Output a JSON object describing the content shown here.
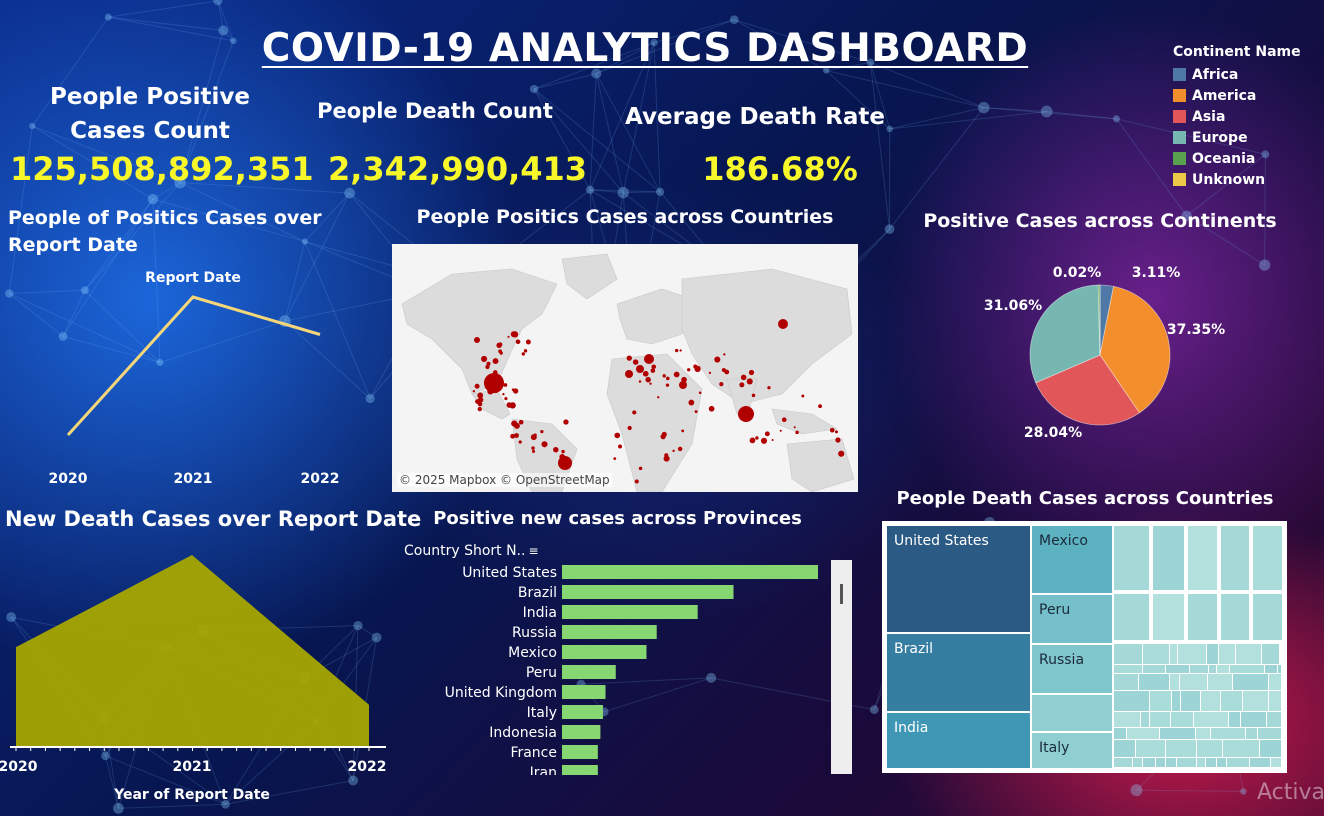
{
  "title": "COVID-19 ANALYTICS DASHBOARD",
  "kpis": {
    "positive_label_line1": "People Positive",
    "positive_label_line2": "Cases Count",
    "positive_value": "125,508,892,351",
    "death_label": "People Death Count",
    "death_value": "2,342,990,413",
    "rate_label": "Average Death Rate",
    "rate_value": "186.68%"
  },
  "legend": {
    "title": "Continent Name",
    "items": [
      {
        "name": "Africa",
        "color": "#4e79a7"
      },
      {
        "name": "America",
        "color": "#f28e2b"
      },
      {
        "name": "Asia",
        "color": "#e15759"
      },
      {
        "name": "Europe",
        "color": "#76b7b2"
      },
      {
        "name": "Oceania",
        "color": "#59a14f"
      },
      {
        "name": "Unknown",
        "color": "#edc948"
      }
    ]
  },
  "map": {
    "title": "People Positics Cases across Countries",
    "attribution": "© 2025 Mapbox © OpenStreetMap"
  },
  "activate_text": "Activa",
  "chart_data": [
    {
      "id": "positive-over-date",
      "type": "line",
      "title": "People of Positics Cases over Report Date",
      "header_label": "Report Date",
      "categories": [
        "2020",
        "2021",
        "2022"
      ],
      "values": [
        8,
        100,
        75
      ],
      "ylim": [
        0,
        100
      ],
      "color": "#f5d77a",
      "grid": false
    },
    {
      "id": "continent-pie",
      "type": "pie",
      "title": "Positive Cases across Continents",
      "slices": [
        {
          "name": "Africa",
          "value": 3.11,
          "label": "3.11%"
        },
        {
          "name": "America",
          "value": 37.35,
          "label": "37.35%"
        },
        {
          "name": "Asia",
          "value": 28.04,
          "label": "28.04%"
        },
        {
          "name": "Europe",
          "value": 31.06,
          "label": "31.06%"
        },
        {
          "name": "Oceania",
          "value": 0.4,
          "label": ""
        },
        {
          "name": "Unknown",
          "value": 0.02,
          "label": "0.02%"
        }
      ]
    },
    {
      "id": "death-over-date",
      "type": "area",
      "title": "New Death Cases over Report Date",
      "xlabel": "Year of Report Date",
      "categories": [
        "2020",
        "2021",
        "2022"
      ],
      "values": [
        52,
        100,
        22
      ],
      "ylim": [
        0,
        100
      ],
      "color": "#a7a600",
      "grid": false
    },
    {
      "id": "provinces-bar",
      "type": "bar",
      "orientation": "horizontal",
      "title": "Positive new cases across Provinces",
      "ylabel": "Country Short N..",
      "categories": [
        "United States",
        "Brazil",
        "India",
        "Russia",
        "Mexico",
        "Peru",
        "United Kingdom",
        "Italy",
        "Indonesia",
        "France",
        "Iran"
      ],
      "values": [
        100,
        67,
        53,
        37,
        33,
        21,
        17,
        16,
        15,
        14,
        14
      ],
      "xlim": [
        0,
        100
      ],
      "color": "#86d672"
    },
    {
      "id": "death-treemap",
      "type": "treemap",
      "title": "People Death Cases across Countries",
      "items": [
        {
          "name": "United States",
          "value": 100,
          "color": "#2b5a84"
        },
        {
          "name": "Brazil",
          "value": 73,
          "color": "#357ea2"
        },
        {
          "name": "India",
          "value": 50,
          "color": "#3f97b5"
        },
        {
          "name": "Mexico",
          "value": 30,
          "color": "#5db2c1"
        },
        {
          "name": "Peru",
          "value": 23,
          "color": "#74bfca"
        },
        {
          "name": "Russia",
          "value": 22,
          "color": "#80c6cd"
        },
        {
          "name": "Italy",
          "value": 16,
          "color": "#8fcfd2"
        }
      ]
    }
  ]
}
